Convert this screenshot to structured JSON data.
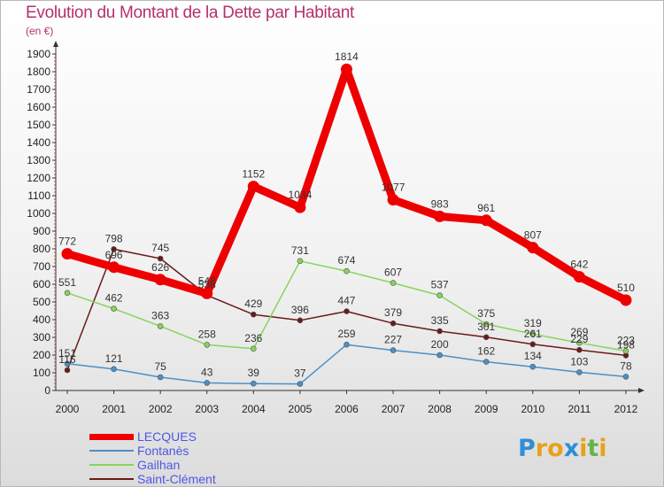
{
  "header": {
    "title": "Evolution du Montant de la Dette par Habitant",
    "subtitle": "(en €)"
  },
  "chart_data": {
    "type": "line",
    "title": "Evolution du Montant de la Dette par Habitant",
    "subtitle": "(en €)",
    "xlabel": "",
    "ylabel": "",
    "x": [
      "2000",
      "2001",
      "2002",
      "2003",
      "2004",
      "2005",
      "2006",
      "2007",
      "2008",
      "2009",
      "2010",
      "2011",
      "2012"
    ],
    "ylim": [
      0,
      1900
    ],
    "yticks": [
      0,
      100,
      200,
      300,
      400,
      500,
      600,
      700,
      800,
      900,
      1000,
      1100,
      1200,
      1300,
      1400,
      1500,
      1600,
      1700,
      1800,
      1900
    ],
    "grid": false,
    "legend_position": "bottom-left",
    "series": [
      {
        "name": "LECQUES",
        "color": "#ee0000",
        "values": [
          772,
          696,
          626,
          548,
          1152,
          1034,
          1814,
          1077,
          983,
          961,
          807,
          642,
          510
        ]
      },
      {
        "name": "Fontanès",
        "color": "#4a90c8",
        "values": [
          151,
          121,
          75,
          43,
          39,
          37,
          259,
          227,
          200,
          162,
          134,
          103,
          78
        ]
      },
      {
        "name": "Gailhan",
        "color": "#86d45a",
        "values": [
          551,
          462,
          363,
          258,
          236,
          731,
          674,
          607,
          537,
          375,
          319,
          269,
          223
        ]
      },
      {
        "name": "Saint-Clément",
        "color": "#6b1a1a",
        "values": [
          115,
          798,
          745,
          538,
          429,
          396,
          447,
          379,
          335,
          301,
          261,
          229,
          198
        ]
      }
    ]
  },
  "logo": {
    "letters": [
      "P",
      "r",
      "o",
      "x",
      "i",
      "t",
      "i"
    ],
    "colors": [
      "#2d8fd6",
      "#e8a11a",
      "#e8a11a",
      "#2d8fd6",
      "#e8a11a",
      "#6ab34a",
      "#e8a11a"
    ]
  }
}
